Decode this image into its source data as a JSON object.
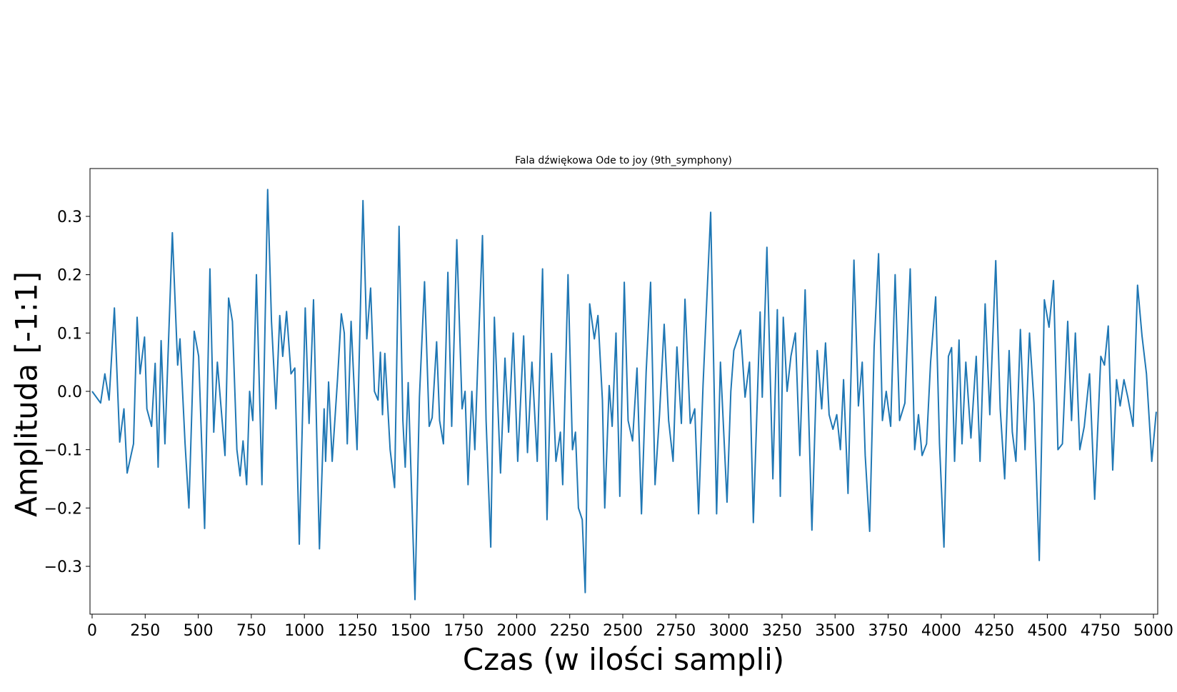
{
  "chart_data": {
    "type": "line",
    "title": "Fala dźwiękowa Ode to joy (9th_symphony)",
    "x_label": "Czas (w ilości sampli)",
    "y_label": "Amplituda [-1:1]",
    "xlim": [
      -10,
      5020
    ],
    "ylim": [
      -0.382,
      0.382
    ],
    "xticks": [
      0,
      250,
      500,
      750,
      1000,
      1250,
      1500,
      1750,
      2000,
      2250,
      2500,
      2750,
      3000,
      3250,
      3500,
      3750,
      4000,
      4250,
      4500,
      4750,
      5000
    ],
    "yticks": [
      {
        "value": -0.3,
        "label": "−0.3"
      },
      {
        "value": -0.2,
        "label": "−0.2"
      },
      {
        "value": -0.1,
        "label": "−0.1"
      },
      {
        "value": 0,
        "label": "0.0"
      },
      0.1,
      0.2,
      0.3
    ],
    "series": [
      {
        "color": "#1f77b4",
        "x": [
          0,
          40,
          60,
          80,
          105,
          130,
          150,
          165,
          195,
          212,
          226,
          247,
          258,
          280,
          297,
          311,
          325,
          343,
          378,
          403,
          414,
          438,
          456,
          481,
          502,
          530,
          555,
          573,
          590,
          608,
          626,
          643,
          661,
          682,
          697,
          711,
          728,
          742,
          757,
          774,
          800,
          827,
          845,
          866,
          884,
          898,
          916,
          937,
          955,
          976,
          1004,
          1022,
          1043,
          1071,
          1093,
          1100,
          1114,
          1131,
          1156,
          1174,
          1188,
          1202,
          1220,
          1248,
          1276,
          1294,
          1312,
          1330,
          1347,
          1358,
          1368,
          1379,
          1404,
          1425,
          1446,
          1464,
          1475,
          1489,
          1521,
          1542,
          1566,
          1588,
          1602,
          1623,
          1637,
          1655,
          1676,
          1694,
          1718,
          1743,
          1757,
          1771,
          1789,
          1803,
          1817,
          1839,
          1856,
          1878,
          1895,
          1924,
          1945,
          1962,
          1984,
          2005,
          2033,
          2051,
          2072,
          2097,
          2122,
          2143,
          2164,
          2185,
          2206,
          2217,
          2242,
          2263,
          2277,
          2291,
          2309,
          2323,
          2344,
          2366,
          2383,
          2404,
          2415,
          2436,
          2450,
          2468,
          2486,
          2507,
          2525,
          2546,
          2567,
          2588,
          2610,
          2631,
          2652,
          2673,
          2695,
          2716,
          2737,
          2755,
          2776,
          2793,
          2818,
          2839,
          2857,
          2878,
          2914,
          2942,
          2960,
          2991,
          3009,
          3023,
          3055,
          3076,
          3097,
          3115,
          3147,
          3157,
          3179,
          3207,
          3228,
          3242,
          3256,
          3274,
          3292,
          3313,
          3334,
          3359,
          3391,
          3416,
          3437,
          3455,
          3472,
          3490,
          3508,
          3525,
          3540,
          3561,
          3589,
          3610,
          3628,
          3642,
          3663,
          3684,
          3705,
          3723,
          3741,
          3762,
          3783,
          3804,
          3829,
          3854,
          3875,
          3893,
          3910,
          3931,
          3950,
          3974,
          3992,
          4013,
          4034,
          4049,
          4063,
          4084,
          4098,
          4116,
          4140,
          4165,
          4183,
          4207,
          4229,
          4257,
          4278,
          4299,
          4320,
          4335,
          4352,
          4373,
          4395,
          4416,
          4437,
          4462,
          4486,
          4508,
          4529,
          4550,
          4571,
          4596,
          4614,
          4632,
          4653,
          4674,
          4699,
          4723,
          4752,
          4769,
          4787,
          4808,
          4826,
          4843,
          4861,
          4879,
          4904,
          4925,
          4946,
          4967,
          4992,
          5013
        ],
        "values": [
          0,
          -0.02,
          0.03,
          -0.015,
          0.143,
          -0.087,
          -0.03,
          -0.14,
          -0.09,
          0.127,
          0.03,
          0.093,
          -0.03,
          -0.06,
          0.048,
          -0.13,
          0.087,
          -0.09,
          0.272,
          0.045,
          0.09,
          -0.09,
          -0.2,
          0.103,
          0.06,
          -0.235,
          0.21,
          -0.07,
          0.05,
          -0.03,
          -0.11,
          0.16,
          0.12,
          -0.1,
          -0.145,
          -0.085,
          -0.16,
          0,
          -0.05,
          0.2,
          -0.16,
          0.346,
          0.12,
          -0.03,
          0.13,
          0.06,
          0.137,
          0.03,
          0.04,
          -0.262,
          0.143,
          -0.055,
          0.157,
          -0.27,
          -0.03,
          -0.12,
          0.016,
          -0.12,
          0.02,
          0.133,
          0.1,
          -0.09,
          0.12,
          -0.1,
          0.327,
          0.09,
          0.177,
          0,
          -0.015,
          0.067,
          -0.04,
          0.065,
          -0.1,
          -0.165,
          0.283,
          -0.05,
          -0.13,
          0.015,
          -0.357,
          -0.01,
          0.188,
          -0.06,
          -0.045,
          0.085,
          -0.05,
          -0.09,
          0.204,
          -0.06,
          0.26,
          -0.03,
          0,
          -0.16,
          0,
          -0.1,
          0.05,
          0.267,
          -0.05,
          -0.267,
          0.127,
          -0.14,
          0.057,
          -0.07,
          0.1,
          -0.12,
          0.095,
          -0.105,
          0.05,
          -0.12,
          0.21,
          -0.22,
          0.065,
          -0.12,
          -0.07,
          -0.16,
          0.2,
          -0.1,
          -0.07,
          -0.2,
          -0.22,
          -0.345,
          0.15,
          0.09,
          0.13,
          -0.015,
          -0.2,
          0.01,
          -0.06,
          0.1,
          -0.18,
          0.187,
          -0.05,
          -0.085,
          0.04,
          -0.21,
          0.033,
          0.187,
          -0.16,
          -0.04,
          0.115,
          -0.05,
          -0.12,
          0.076,
          -0.055,
          0.158,
          -0.055,
          -0.03,
          -0.21,
          0.01,
          0.307,
          -0.21,
          0.05,
          -0.19,
          0,
          0.07,
          0.105,
          -0.01,
          0.05,
          -0.225,
          0.136,
          -0.01,
          0.247,
          -0.15,
          0.14,
          -0.18,
          0.127,
          0,
          0.06,
          0.1,
          -0.11,
          0.174,
          -0.238,
          0.07,
          -0.03,
          0.083,
          -0.04,
          -0.065,
          -0.04,
          -0.1,
          0.02,
          -0.175,
          0.225,
          -0.025,
          0.05,
          -0.11,
          -0.24,
          0.076,
          0.236,
          -0.05,
          0,
          -0.06,
          0.2,
          -0.05,
          -0.02,
          0.21,
          -0.1,
          -0.04,
          -0.11,
          -0.09,
          0.05,
          0.162,
          -0.09,
          -0.267,
          0.06,
          0.075,
          -0.12,
          0.088,
          -0.09,
          0.05,
          -0.08,
          0.06,
          -0.12,
          0.15,
          -0.04,
          0.224,
          -0.03,
          -0.15,
          0.07,
          -0.07,
          -0.12,
          0.106,
          -0.1,
          0.1,
          -0.02,
          -0.29,
          0.157,
          0.11,
          0.19,
          -0.1,
          -0.09,
          0.12,
          -0.05,
          0.1,
          -0.1,
          -0.06,
          0.03,
          -0.185,
          0.06,
          0.045,
          0.112,
          -0.135,
          0.02,
          -0.025,
          0.02,
          -0.01,
          -0.06,
          0.182,
          0.095,
          0.03,
          -0.12,
          -0.035
        ]
      }
    ]
  }
}
